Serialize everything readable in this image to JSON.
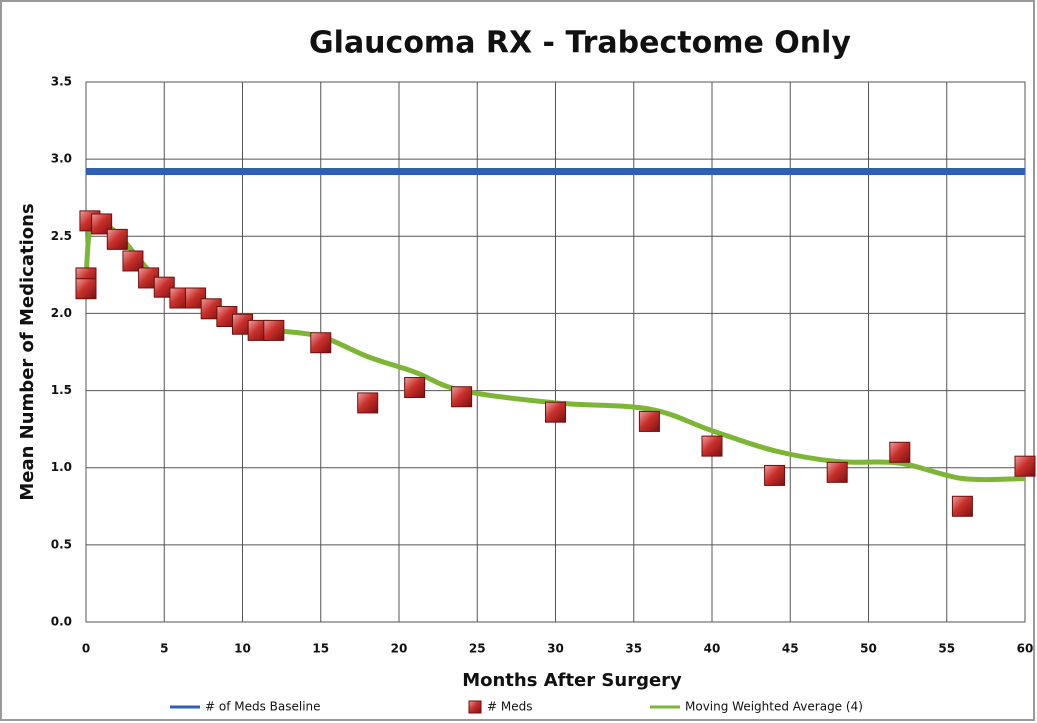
{
  "chart_data": {
    "type": "line",
    "title": "Glaucoma RX - Trabectome Only",
    "x_label": "Months After Surgery",
    "y_label": "Mean Number of Medications",
    "xlim": [
      0,
      60
    ],
    "ylim": [
      0,
      3.5
    ],
    "xticks": [
      0,
      5,
      10,
      15,
      20,
      25,
      30,
      35,
      40,
      45,
      50,
      55,
      60
    ],
    "yticks": [
      {
        "value": 0,
        "label": "0.0"
      },
      {
        "value": 0.5,
        "label": "0.5"
      },
      {
        "value": 1,
        "label": "1.0"
      },
      {
        "value": 1.5,
        "label": "1.5"
      },
      {
        "value": 2,
        "label": "2.0"
      },
      {
        "value": 2.5,
        "label": "2.5"
      },
      {
        "value": 3,
        "label": "3.0"
      },
      {
        "value": 3.5,
        "label": "3.5"
      }
    ],
    "grid": true,
    "legend": "bottom",
    "series": [
      {
        "name": "# of Meds Baseline",
        "color": "#2f5fb3",
        "style": "line",
        "x": [
          0,
          60
        ],
        "values": [
          2.92,
          2.92
        ]
      },
      {
        "name": "# Meds",
        "color": "#c0282a",
        "style": "marker",
        "x": [
          0,
          0,
          0.25,
          1,
          2,
          3,
          4,
          5,
          6,
          7,
          8,
          9,
          10,
          11,
          12,
          15,
          18,
          21,
          24,
          30,
          36,
          40,
          44,
          48,
          52,
          56,
          60
        ],
        "values": [
          2.23,
          2.16,
          2.6,
          2.58,
          2.48,
          2.34,
          2.23,
          2.17,
          2.1,
          2.1,
          2.03,
          1.98,
          1.93,
          1.89,
          1.89,
          1.81,
          1.42,
          1.52,
          1.46,
          1.36,
          1.3,
          1.14,
          0.95,
          0.97,
          1.1,
          0.75,
          1.01
        ]
      },
      {
        "name": "Moving Weighted Average (4)",
        "color": "#7db536",
        "style": "smooth",
        "x": [
          0,
          0.25,
          1,
          2,
          3,
          4,
          5,
          6,
          7,
          8,
          9,
          10,
          11,
          12,
          15,
          18,
          21,
          24,
          30,
          36,
          40,
          44,
          48,
          52,
          56,
          60
        ],
        "values": [
          2.2,
          2.55,
          2.58,
          2.52,
          2.4,
          2.28,
          2.18,
          2.12,
          2.08,
          2.03,
          1.99,
          1.95,
          1.91,
          1.89,
          1.85,
          1.72,
          1.62,
          1.5,
          1.42,
          1.38,
          1.24,
          1.11,
          1.04,
          1.03,
          0.93,
          0.93
        ]
      }
    ]
  }
}
